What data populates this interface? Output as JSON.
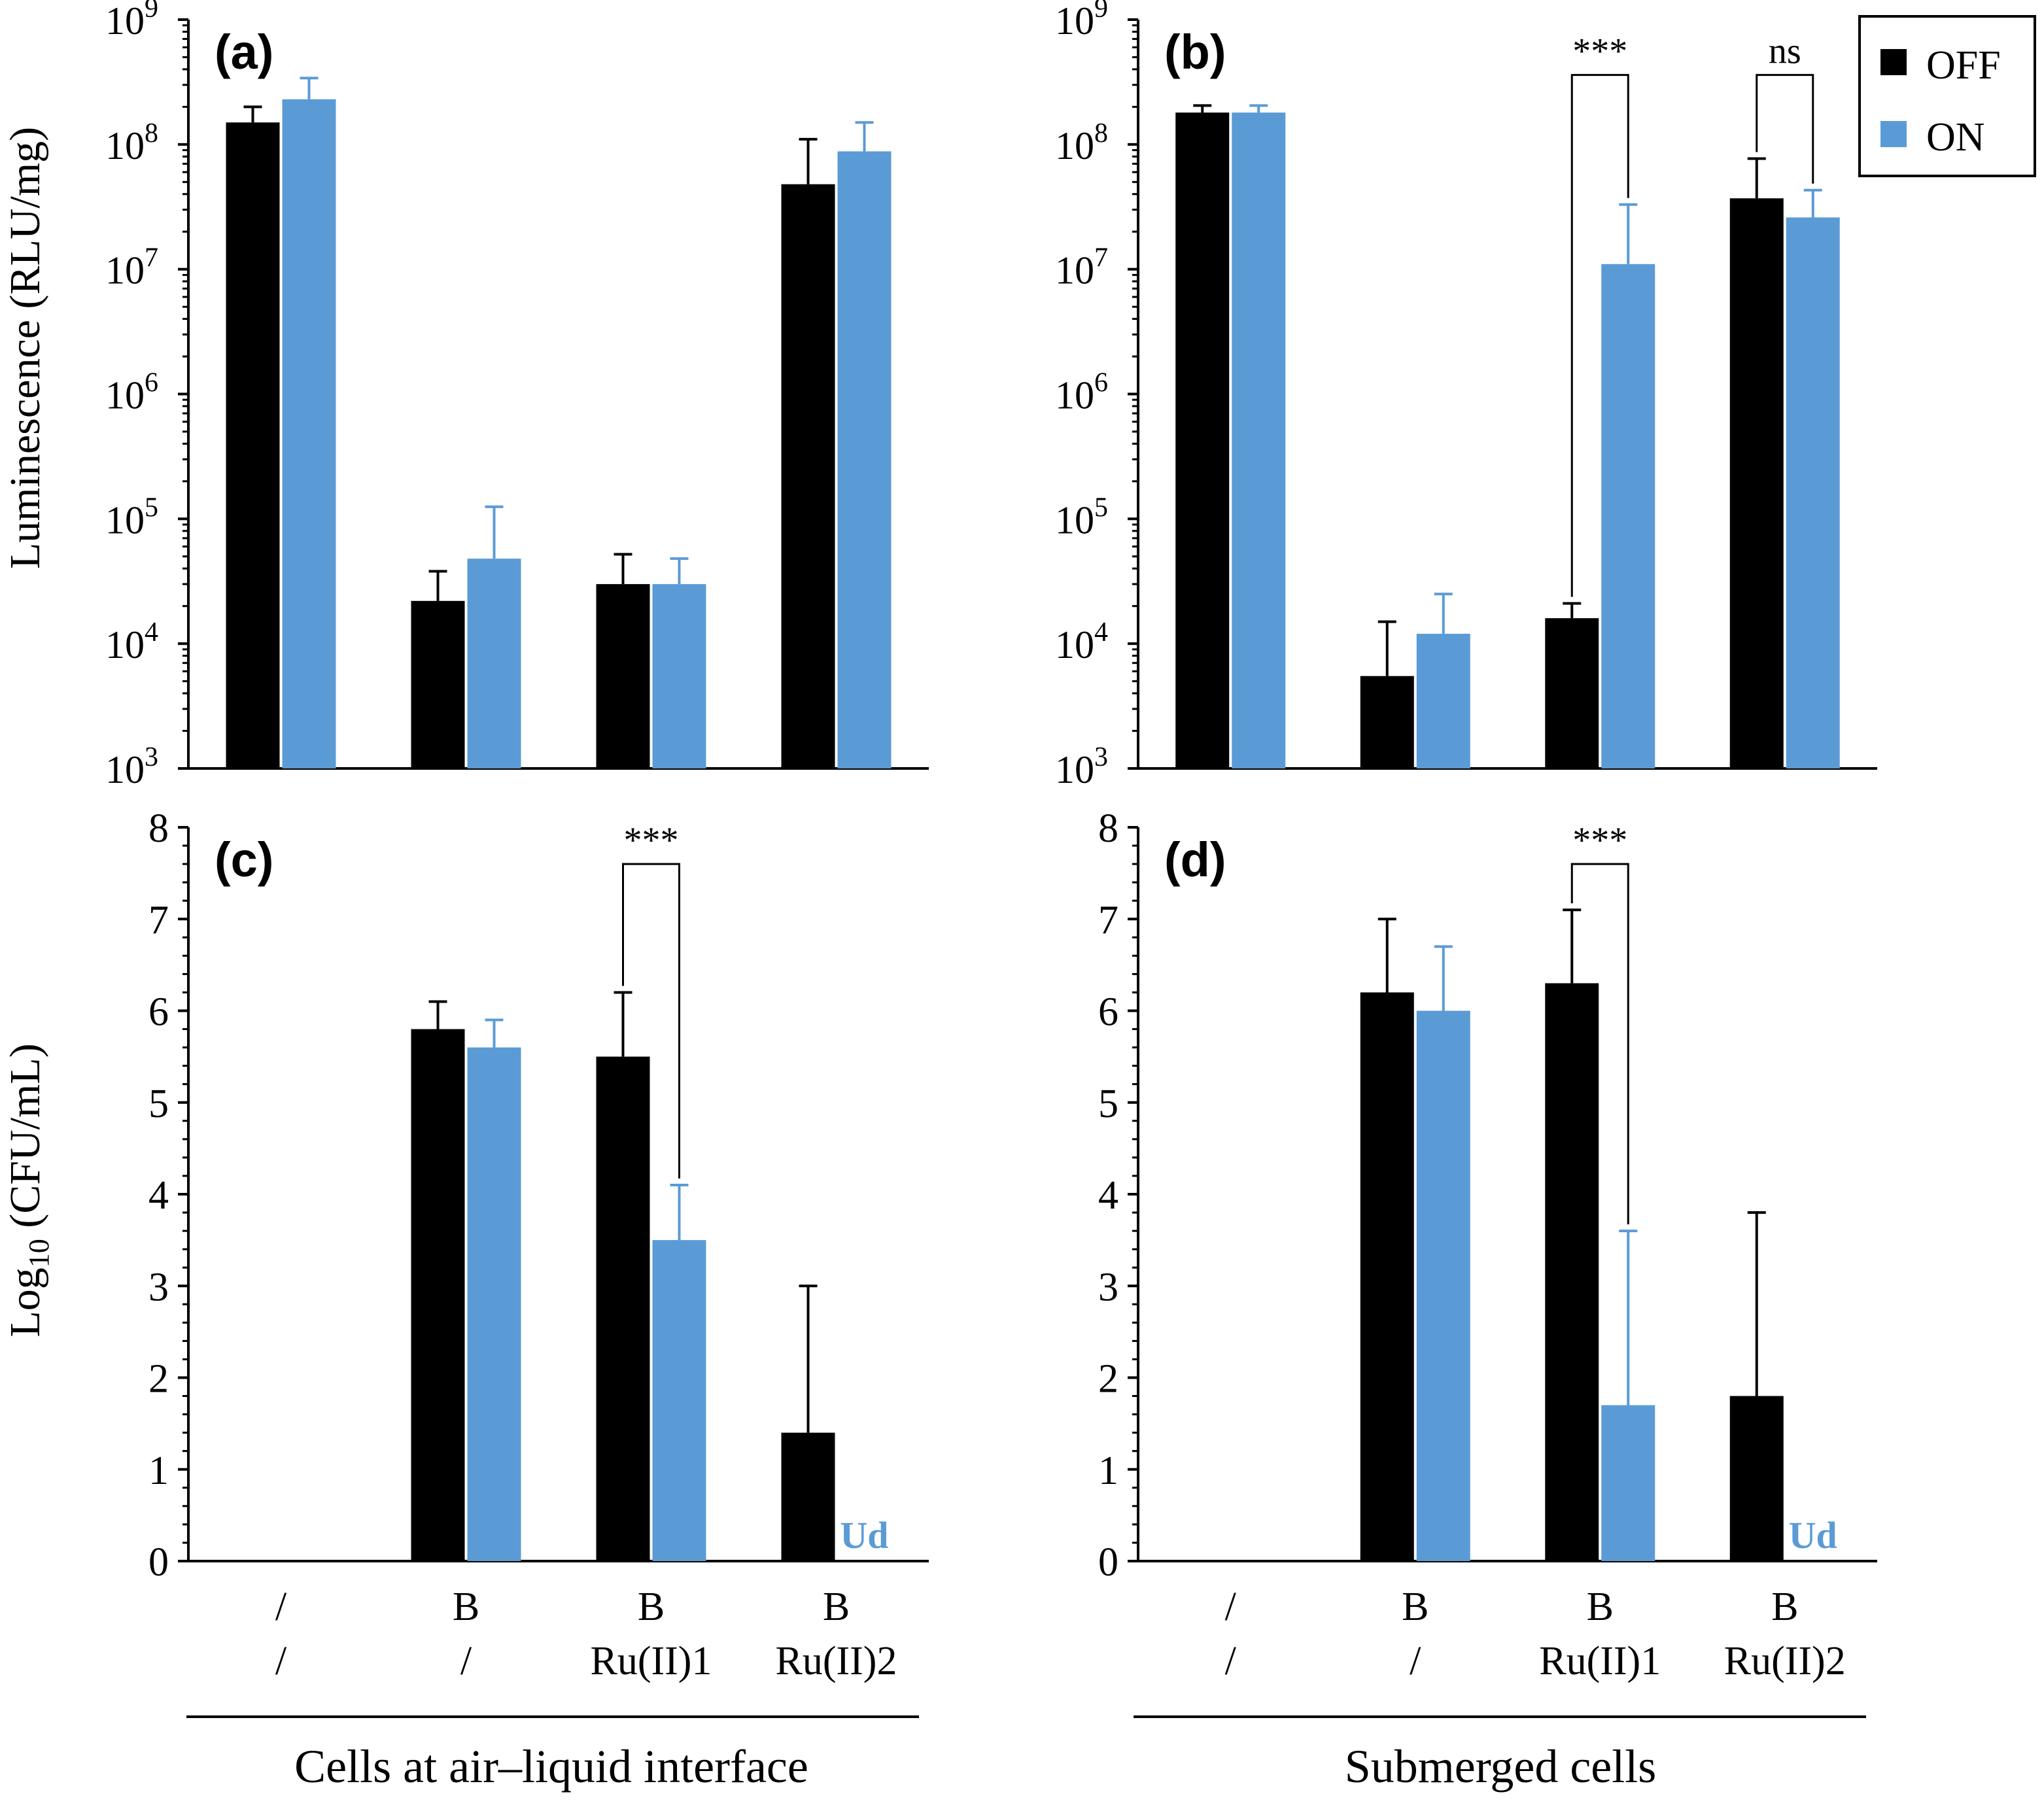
{
  "colors": {
    "off": "#000000",
    "on": "#5b9bd5",
    "axis": "#000000"
  },
  "legend": {
    "items": [
      {
        "label": "OFF",
        "color": "#000000"
      },
      {
        "label": "ON",
        "color": "#5b9bd5"
      }
    ]
  },
  "y_titles": {
    "top": "Luminescence (RLU/mg)",
    "bottom_main": "Log",
    "bottom_sub": "10",
    "bottom_tail": " (CFU/mL)"
  },
  "x_groups": {
    "left_title": "Cells at air–liquid interface",
    "right_title": "Submerged cells",
    "line1": [
      "/",
      "B",
      "B",
      "B"
    ],
    "line2": [
      "/",
      "/",
      "Ru(II)1",
      "Ru(II)2"
    ]
  },
  "ud_label": "Ud",
  "chart_data": [
    {
      "panel": "a",
      "label": "(a)",
      "type": "bar",
      "scale": "log",
      "ylim": [
        1000,
        1000000000
      ],
      "yticks": [
        3,
        4,
        5,
        6,
        7,
        8,
        9
      ],
      "categories": [
        "/ /",
        "B /",
        "B Ru(II)1",
        "B Ru(II)2"
      ],
      "series": [
        {
          "name": "OFF",
          "values": [
            150000000,
            22000,
            30000,
            48000000
          ],
          "errors_upper": [
            200000000,
            38000,
            52000,
            110000000
          ]
        },
        {
          "name": "ON",
          "values": [
            230000000,
            48000,
            30000,
            88000000
          ],
          "errors_upper": [
            340000000,
            125000,
            48000,
            150000000
          ]
        }
      ],
      "annotations": []
    },
    {
      "panel": "b",
      "label": "(b)",
      "type": "bar",
      "scale": "log",
      "ylim": [
        1000,
        1000000000
      ],
      "yticks": [
        3,
        4,
        5,
        6,
        7,
        8,
        9
      ],
      "categories": [
        "/ /",
        "B /",
        "B Ru(II)1",
        "B Ru(II)2"
      ],
      "series": [
        {
          "name": "OFF",
          "values": [
            180000000,
            5500,
            16000,
            37000000
          ],
          "errors_upper": [
            205000000,
            15000,
            21000,
            77000000
          ]
        },
        {
          "name": "ON",
          "values": [
            180000000,
            12000,
            11000000,
            26000000
          ],
          "errors_upper": [
            205000000,
            25000,
            33000000,
            43000000
          ]
        }
      ],
      "annotations": [
        {
          "group": 2,
          "text": "***",
          "bracket_top": 360000000
        },
        {
          "group": 3,
          "text": "ns",
          "bracket_top": 360000000
        }
      ]
    },
    {
      "panel": "c",
      "label": "(c)",
      "type": "bar",
      "scale": "linear",
      "ylim": [
        0,
        8
      ],
      "yticks": [
        0,
        1,
        2,
        3,
        4,
        5,
        6,
        7,
        8
      ],
      "categories": [
        "/ /",
        "B /",
        "B Ru(II)1",
        "B Ru(II)2"
      ],
      "series": [
        {
          "name": "OFF",
          "values": [
            0,
            5.8,
            5.5,
            1.4
          ],
          "errors_upper": [
            0,
            6.1,
            6.2,
            3.0
          ]
        },
        {
          "name": "ON",
          "values": [
            0,
            5.6,
            3.5,
            0
          ],
          "errors_upper": [
            0,
            5.9,
            4.1,
            0
          ]
        }
      ],
      "annotations": [
        {
          "group": 2,
          "text": "***",
          "bracket_top": 7.6
        }
      ],
      "ud_group": 3
    },
    {
      "panel": "d",
      "label": "(d)",
      "type": "bar",
      "scale": "linear",
      "ylim": [
        0,
        8
      ],
      "yticks": [
        0,
        1,
        2,
        3,
        4,
        5,
        6,
        7,
        8
      ],
      "categories": [
        "/ /",
        "B /",
        "B Ru(II)1",
        "B Ru(II)2"
      ],
      "series": [
        {
          "name": "OFF",
          "values": [
            0,
            6.2,
            6.3,
            1.8
          ],
          "errors_upper": [
            0,
            7.0,
            7.1,
            3.8
          ]
        },
        {
          "name": "ON",
          "values": [
            0,
            6.0,
            1.7,
            0
          ],
          "errors_upper": [
            0,
            6.7,
            3.6,
            0
          ]
        }
      ],
      "annotations": [
        {
          "group": 2,
          "text": "***",
          "bracket_top": 7.6
        }
      ],
      "ud_group": 3
    }
  ]
}
